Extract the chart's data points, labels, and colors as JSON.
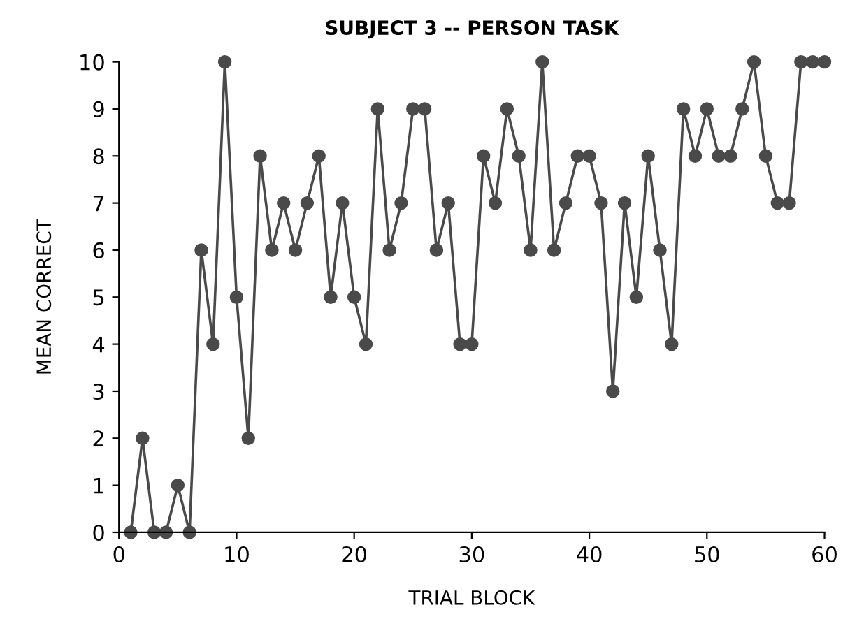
{
  "chart_data": {
    "type": "line",
    "title": "SUBJECT 3 -- PERSON TASK",
    "xlabel": "TRIAL BLOCK",
    "ylabel": "MEAN CORRECT",
    "x": [
      1,
      2,
      3,
      4,
      5,
      6,
      7,
      8,
      9,
      10,
      11,
      12,
      13,
      14,
      15,
      16,
      17,
      18,
      19,
      20,
      21,
      22,
      23,
      24,
      25,
      26,
      27,
      28,
      29,
      30,
      31,
      32,
      33,
      34,
      35,
      36,
      37,
      38,
      39,
      40,
      41,
      42,
      43,
      44,
      45,
      46,
      47,
      48,
      49,
      50,
      51,
      52,
      53,
      54,
      55,
      56,
      57,
      58,
      59,
      60
    ],
    "series": [
      {
        "color": "#4a4a4a",
        "values": [
          0,
          2,
          0,
          0,
          1,
          0,
          6,
          4,
          10,
          5,
          2,
          8,
          6,
          7,
          6,
          7,
          8,
          5,
          7,
          5,
          4,
          9,
          6,
          7,
          9,
          9,
          6,
          7,
          4,
          4,
          8,
          7,
          9,
          8,
          6,
          10,
          6,
          7,
          8,
          8,
          7,
          3,
          7,
          5,
          8,
          6,
          4,
          9,
          8,
          9,
          8,
          8,
          9,
          10,
          8,
          7,
          7,
          10,
          10,
          10
        ]
      }
    ],
    "xlim": [
      0,
      60
    ],
    "ylim": [
      0,
      10
    ],
    "xticks": [
      0,
      10,
      20,
      30,
      40,
      50,
      60
    ],
    "yticks": [
      0,
      1,
      2,
      3,
      4,
      5,
      6,
      7,
      8,
      9,
      10
    ],
    "marker": "circle",
    "line_style": "solid",
    "grid": false,
    "legend": false
  }
}
